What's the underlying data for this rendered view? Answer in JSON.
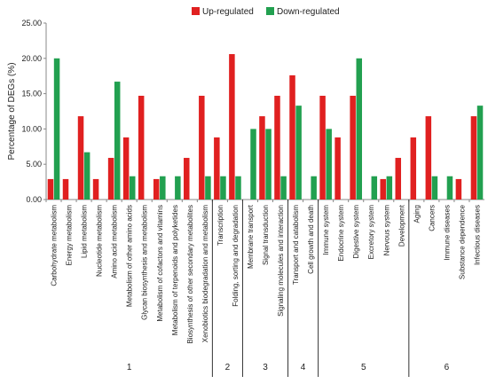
{
  "chart_data": {
    "type": "bar",
    "ylabel": "Percentage of DEGs (%)",
    "xlabel": "",
    "ylim": [
      0,
      25
    ],
    "yticks": [
      "0.00",
      "5.00",
      "10.00",
      "15.00",
      "20.00",
      "25.00"
    ],
    "legend_position": "top",
    "categories": [
      "Carbohydrate metabolism",
      "Energy metabolism",
      "Lipid metabolism",
      "Nucleotide metabolism",
      "Amino acid metabolism",
      "Metabolism of other amino acids",
      "Glycan biosynthesis and metabolism",
      "Metabolism of cofactors and vitamins",
      "Metabolism of terpenoids and polyketides",
      "Biosynthesis of other secondary metabolites",
      "Xenobiotics biodegradation and metabolism",
      "Transcription",
      "Folding, sorting and degradation",
      "Membrane transport",
      "Signal transduction",
      "Signaling molecules and interaction",
      "Transport and catabolism",
      "Cell growth and death",
      "Immune system",
      "Endocrine system",
      "Digestive system",
      "Excretory system",
      "Nervous system",
      "Development",
      "Aging",
      "Cancers",
      "Immune diseases",
      "Substance dependence",
      "Infectious diseases"
    ],
    "series": [
      {
        "name": "Up-regulated",
        "color": "#e02020",
        "values": [
          2.9,
          2.9,
          11.8,
          2.9,
          5.9,
          8.8,
          14.7,
          2.9,
          0,
          5.9,
          14.7,
          8.8,
          20.6,
          0,
          11.8,
          14.7,
          17.6,
          0,
          14.7,
          8.8,
          14.7,
          0,
          2.9,
          5.9,
          8.8,
          11.8,
          0,
          2.9,
          11.8
        ]
      },
      {
        "name": "Down-regulated",
        "color": "#22a050",
        "values": [
          20.0,
          0,
          6.7,
          0,
          16.7,
          3.3,
          0,
          3.3,
          3.3,
          0,
          3.3,
          3.3,
          3.3,
          10.0,
          10.0,
          3.3,
          13.3,
          3.3,
          10.0,
          0,
          20.0,
          3.3,
          3.3,
          0,
          0,
          3.3,
          3.3,
          0,
          13.3
        ]
      }
    ],
    "groups": [
      {
        "label": "1",
        "start": 0,
        "end": 10
      },
      {
        "label": "2",
        "start": 11,
        "end": 12
      },
      {
        "label": "3",
        "start": 13,
        "end": 15
      },
      {
        "label": "4",
        "start": 16,
        "end": 17
      },
      {
        "label": "5",
        "start": 18,
        "end": 23
      },
      {
        "label": "6",
        "start": 24,
        "end": 28
      }
    ]
  }
}
